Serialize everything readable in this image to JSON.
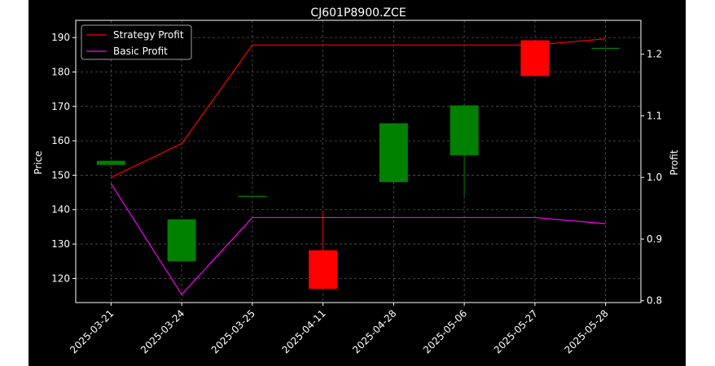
{
  "chart_data": {
    "type": "candlestick",
    "title": "CJ601P8900.ZCE",
    "xlabel": "",
    "ylabel": "Price",
    "y2label": "Profit",
    "categories": [
      "2025-03-21",
      "2025-03-24",
      "2025-03-25",
      "2025-04-11",
      "2025-04-28",
      "2025-05-06",
      "2025-05-27",
      "2025-05-28"
    ],
    "ylim": [
      113,
      195
    ],
    "y2lim": [
      0.797,
      1.255
    ],
    "yticks": [
      120,
      130,
      140,
      150,
      160,
      170,
      180,
      190
    ],
    "y2ticks": [
      0.8,
      0.9,
      1.0,
      1.1,
      1.2
    ],
    "y2tick_labels": [
      "0.8",
      "0.9",
      "1.0",
      "1.1",
      "1.2"
    ],
    "grid": true,
    "legend_position": "top-left",
    "candles": [
      {
        "date": "2025-03-21",
        "open": 153.0,
        "high": 154.2,
        "low": 153.0,
        "close": 154.2
      },
      {
        "date": "2025-03-24",
        "open": 125.0,
        "high": 137.2,
        "low": 125.0,
        "close": 137.2
      },
      {
        "date": "2025-03-25",
        "open": 144.0,
        "high": 144.0,
        "low": 144.0,
        "close": 144.0
      },
      {
        "date": "2025-04-11",
        "open": 128.2,
        "high": 139.5,
        "low": 116.7,
        "close": 117.0
      },
      {
        "date": "2025-04-28",
        "open": 148.0,
        "high": 165.1,
        "low": 148.0,
        "close": 165.1
      },
      {
        "date": "2025-05-06",
        "open": 155.8,
        "high": 170.3,
        "low": 144.0,
        "close": 170.3
      },
      {
        "date": "2025-05-27",
        "open": 189.2,
        "high": 189.2,
        "low": 178.8,
        "close": 178.8
      },
      {
        "date": "2025-05-28",
        "open": 187.0,
        "high": 187.0,
        "low": 187.0,
        "close": 187.0
      }
    ],
    "series": [
      {
        "name": "Strategy Profit",
        "axis": "right",
        "color": "#ff0000",
        "values": [
          1.0,
          1.055,
          1.215,
          1.215,
          1.215,
          1.215,
          1.215,
          1.225
        ]
      },
      {
        "name": "Basic Profit",
        "axis": "right",
        "color": "#ff00ff",
        "values": [
          0.99,
          0.81,
          0.935,
          0.935,
          0.935,
          0.935,
          0.935,
          0.925
        ]
      }
    ],
    "up_color": "#008000",
    "down_color": "#ff0000"
  }
}
